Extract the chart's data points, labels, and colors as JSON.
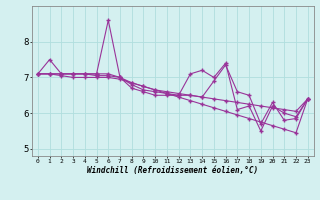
{
  "xlabel": "Windchill (Refroidissement éolien,°C)",
  "background_color": "#d4f0f0",
  "line_color": "#993399",
  "grid_color": "#b0dede",
  "xlim": [
    -0.5,
    23.5
  ],
  "ylim": [
    4.8,
    9.0
  ],
  "yticks": [
    5,
    6,
    7,
    8
  ],
  "xticks": [
    0,
    1,
    2,
    3,
    4,
    5,
    6,
    7,
    8,
    9,
    10,
    11,
    12,
    13,
    14,
    15,
    16,
    17,
    18,
    19,
    20,
    21,
    22,
    23
  ],
  "series1": [
    7.1,
    7.5,
    7.1,
    7.1,
    7.1,
    7.1,
    8.6,
    7.0,
    6.7,
    6.6,
    6.5,
    6.5,
    6.5,
    7.1,
    7.2,
    7.0,
    7.4,
    6.1,
    6.2,
    5.5,
    6.2,
    6.0,
    5.9,
    6.4
  ],
  "series2": [
    7.1,
    7.1,
    7.1,
    7.1,
    7.1,
    7.05,
    7.05,
    7.0,
    6.85,
    6.75,
    6.65,
    6.6,
    6.55,
    6.5,
    6.45,
    6.4,
    6.35,
    6.3,
    6.25,
    6.2,
    6.15,
    6.1,
    6.05,
    6.4
  ],
  "series3": [
    7.1,
    7.1,
    7.1,
    7.1,
    7.1,
    7.1,
    7.1,
    7.0,
    6.8,
    6.65,
    6.6,
    6.55,
    6.5,
    6.5,
    6.45,
    6.9,
    7.35,
    6.6,
    6.5,
    5.7,
    6.3,
    5.8,
    5.85,
    6.4
  ],
  "series4": [
    7.1,
    7.1,
    7.05,
    7.0,
    7.0,
    7.0,
    7.0,
    6.95,
    6.85,
    6.75,
    6.65,
    6.55,
    6.45,
    6.35,
    6.25,
    6.15,
    6.05,
    5.95,
    5.85,
    5.75,
    5.65,
    5.55,
    5.45,
    6.4
  ]
}
